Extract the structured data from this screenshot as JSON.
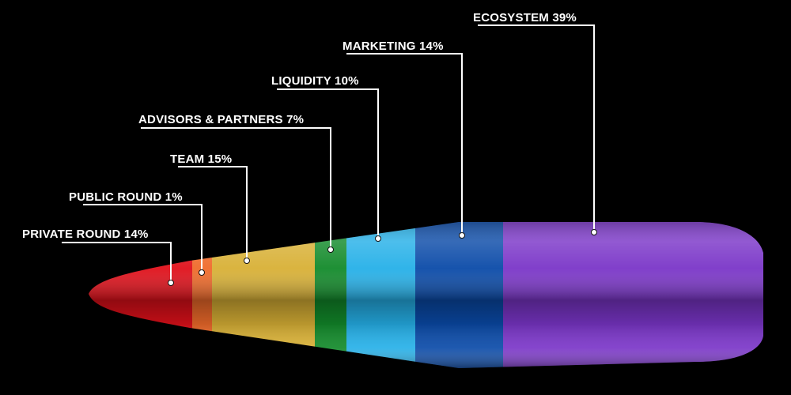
{
  "chart_data": {
    "type": "bar",
    "title": "",
    "xlabel": "",
    "ylabel": "",
    "legend": "callout labels",
    "series": [
      {
        "values": [
          14,
          1,
          15,
          7,
          10,
          14,
          39
        ]
      }
    ],
    "categories": [
      "PRIVATE ROUND",
      "PUBLIC ROUND",
      "TEAM",
      "ADVISORS & PARTNERS",
      "LIQUIDITY",
      "MARKETING",
      "ECOSYSTEM"
    ],
    "labels": [
      "PRIVATE ROUND 14%",
      "PUBLIC ROUND  1%",
      "TEAM  15%",
      "ADVISORS & PARTNERS  7%",
      "LIQUIDITY  10%",
      "MARKETING  14%",
      "ECOSYSTEM  39%"
    ],
    "colors": [
      "#e0101a",
      "#ef6a2a",
      "#d8b035",
      "#128a2a",
      "#25b0e8",
      "#0a4aa8",
      "#7a35c8"
    ]
  }
}
